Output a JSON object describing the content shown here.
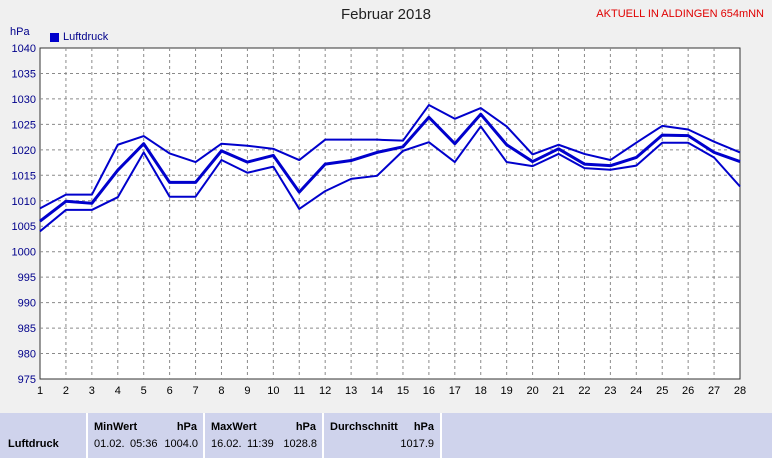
{
  "header": {
    "title": "Februar 2018",
    "location_label": "AKTUELL IN ALDINGEN 654mNN",
    "unit_label": "hPa",
    "legend_label": "Luftdruck"
  },
  "colors": {
    "series": "#0000cc",
    "background": "#f0f0f0",
    "alert": "#e00000",
    "stats_bg": "#cfd3ec"
  },
  "chart_data": {
    "type": "line",
    "title": "Februar 2018",
    "ylabel": "hPa",
    "xlabel": "",
    "xlim": [
      1,
      28
    ],
    "ylim": [
      975,
      1040
    ],
    "x": [
      1,
      2,
      3,
      4,
      5,
      6,
      7,
      8,
      9,
      10,
      11,
      12,
      13,
      14,
      15,
      16,
      17,
      18,
      19,
      20,
      21,
      22,
      23,
      24,
      25,
      26,
      27,
      28
    ],
    "x_ticks": [
      "1",
      "2",
      "3",
      "4",
      "5",
      "6",
      "7",
      "8",
      "9",
      "10",
      "11",
      "12",
      "13",
      "14",
      "15",
      "16",
      "17",
      "18",
      "19",
      "20",
      "21",
      "22",
      "23",
      "24",
      "25",
      "26",
      "27",
      "28"
    ],
    "y_ticks": [
      "975",
      "980",
      "985",
      "990",
      "995",
      "1000",
      "1005",
      "1010",
      "1015",
      "1020",
      "1025",
      "1030",
      "1035",
      "1040"
    ],
    "grid": true,
    "legend_position": "top-left",
    "series": [
      {
        "name": "Luftdruck",
        "role": "max",
        "stroke_width": 2,
        "values": [
          1008.5,
          1011.2,
          1011.2,
          1021.0,
          1022.7,
          1019.3,
          1017.6,
          1021.2,
          1020.8,
          1020.2,
          1018.0,
          1022.0,
          1022.0,
          1022.0,
          1021.8,
          1028.8,
          1026.1,
          1028.2,
          1024.6,
          1019.1,
          1021.0,
          1019.2,
          1018.0,
          1021.4,
          1024.7,
          1024.0,
          1021.6,
          1019.5
        ]
      },
      {
        "name": "Luftdruck",
        "role": "avg",
        "stroke_width": 3,
        "values": [
          1006.0,
          1009.9,
          1009.5,
          1016.0,
          1021.2,
          1013.6,
          1013.6,
          1019.8,
          1017.6,
          1018.9,
          1011.7,
          1017.2,
          1017.9,
          1019.5,
          1020.6,
          1026.4,
          1021.2,
          1027.0,
          1021.0,
          1017.7,
          1020.2,
          1017.2,
          1016.9,
          1018.5,
          1022.9,
          1022.8,
          1019.5,
          1017.7
        ]
      },
      {
        "name": "Luftdruck",
        "role": "min",
        "stroke_width": 2,
        "values": [
          1004.0,
          1008.2,
          1008.2,
          1010.7,
          1019.5,
          1010.8,
          1010.8,
          1018.0,
          1015.5,
          1016.7,
          1008.4,
          1011.9,
          1014.3,
          1014.9,
          1019.8,
          1021.5,
          1017.6,
          1024.6,
          1017.6,
          1016.8,
          1019.2,
          1016.4,
          1016.1,
          1016.9,
          1021.4,
          1021.4,
          1018.5,
          1012.8
        ]
      }
    ]
  },
  "stats": {
    "row_label": "Luftdruck",
    "min": {
      "header": "MinWert",
      "unit": "hPa",
      "date": "01.02.",
      "time": "05:36",
      "value": "1004.0"
    },
    "max": {
      "header": "MaxWert",
      "unit": "hPa",
      "date": "16.02.",
      "time": "11:39",
      "value": "1028.8"
    },
    "avg": {
      "header": "Durchschnitt",
      "unit": "hPa",
      "value": "1017.9"
    }
  }
}
